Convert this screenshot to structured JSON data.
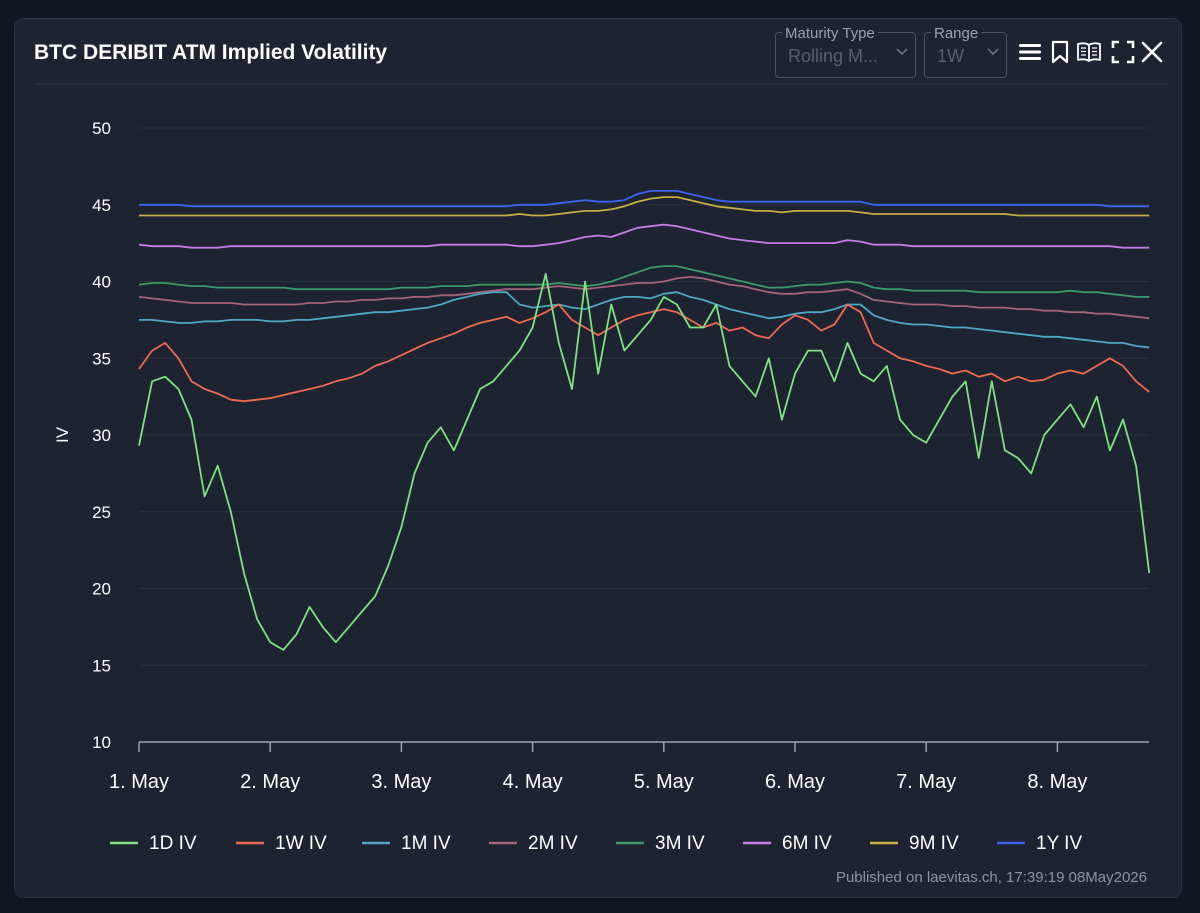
{
  "header": {
    "title": "BTC DERIBIT ATM Implied Volatility",
    "maturity_type": {
      "label": "Maturity Type",
      "value": "Rolling M..."
    },
    "range": {
      "label": "Range",
      "value": "1W"
    },
    "icons": [
      "menu-icon",
      "bookmark-icon",
      "book-icon",
      "fullscreen-icon",
      "close-icon"
    ]
  },
  "footer": {
    "published": "Published on laevitas.ch, 17:39:19 08May2026"
  },
  "colors": {
    "background": "#1d2330",
    "grid": "#293140",
    "axis_text": "#ffffff"
  },
  "chart_data": {
    "type": "line",
    "title": "BTC DERIBIT ATM Implied Volatility",
    "xlabel": "",
    "ylabel": "IV",
    "ylim": [
      10,
      50
    ],
    "yticks": [
      10,
      15,
      20,
      25,
      30,
      35,
      40,
      45,
      50
    ],
    "xlim_days": [
      0,
      7.7
    ],
    "xticks": [
      {
        "day": 0,
        "label": "1. May"
      },
      {
        "day": 1,
        "label": "2. May"
      },
      {
        "day": 2,
        "label": "3. May"
      },
      {
        "day": 3,
        "label": "4. May"
      },
      {
        "day": 4,
        "label": "5. May"
      },
      {
        "day": 5,
        "label": "6. May"
      },
      {
        "day": 6,
        "label": "7. May"
      },
      {
        "day": 7,
        "label": "8. May"
      }
    ],
    "grid": true,
    "legend_position": "bottom",
    "x": [
      0,
      0.1,
      0.2,
      0.3,
      0.4,
      0.5,
      0.6,
      0.7,
      0.8,
      0.9,
      1.0,
      1.1,
      1.2,
      1.3,
      1.4,
      1.5,
      1.6,
      1.7,
      1.8,
      1.9,
      2.0,
      2.1,
      2.2,
      2.3,
      2.4,
      2.5,
      2.6,
      2.7,
      2.8,
      2.9,
      3.0,
      3.1,
      3.2,
      3.3,
      3.4,
      3.5,
      3.6,
      3.7,
      3.8,
      3.9,
      4.0,
      4.1,
      4.2,
      4.3,
      4.4,
      4.5,
      4.6,
      4.7,
      4.8,
      4.9,
      5.0,
      5.1,
      5.2,
      5.3,
      5.4,
      5.5,
      5.6,
      5.7,
      5.8,
      5.9,
      6.0,
      6.1,
      6.2,
      6.3,
      6.4,
      6.5,
      6.6,
      6.7,
      6.8,
      6.9,
      7.0,
      7.1,
      7.2,
      7.3,
      7.4,
      7.5,
      7.6,
      7.7
    ],
    "series": [
      {
        "name": "1D IV",
        "color": "#7ee37e",
        "values": [
          29.3,
          33.5,
          33.8,
          33.0,
          31.0,
          26.0,
          28.0,
          25.0,
          21.0,
          18.0,
          16.5,
          16.0,
          17.0,
          18.8,
          17.5,
          16.5,
          17.5,
          18.5,
          19.5,
          21.5,
          24.0,
          27.5,
          29.5,
          30.5,
          29.0,
          31.0,
          33.0,
          33.5,
          34.5,
          35.5,
          37.0,
          40.5,
          36.0,
          33.0,
          40.0,
          34.0,
          38.5,
          35.5,
          36.5,
          37.5,
          39.0,
          38.5,
          37.0,
          37.0,
          38.5,
          34.5,
          33.5,
          32.5,
          35.0,
          31.0,
          34.0,
          35.5,
          35.5,
          33.5,
          36.0,
          34.0,
          33.5,
          34.5,
          31.0,
          30.0,
          29.5,
          31.0,
          32.5,
          33.5,
          28.5,
          33.5,
          29.0,
          28.5,
          27.5,
          30.0,
          31.0,
          32.0,
          30.5,
          32.5,
          29.0,
          31.0,
          28.0,
          21.0
        ]
      },
      {
        "name": "1W IV",
        "color": "#ee6a4f",
        "values": [
          34.3,
          35.5,
          36.0,
          35.0,
          33.5,
          33.0,
          32.7,
          32.3,
          32.2,
          32.3,
          32.4,
          32.6,
          32.8,
          33.0,
          33.2,
          33.5,
          33.7,
          34.0,
          34.5,
          34.8,
          35.2,
          35.6,
          36.0,
          36.3,
          36.6,
          37.0,
          37.3,
          37.5,
          37.7,
          37.3,
          37.6,
          38.0,
          38.5,
          37.5,
          37.0,
          36.5,
          37.0,
          37.5,
          37.8,
          38.0,
          38.2,
          38.0,
          37.5,
          37.0,
          37.3,
          36.8,
          37.0,
          36.5,
          36.3,
          37.2,
          37.8,
          37.5,
          36.8,
          37.2,
          38.5,
          38.0,
          36.0,
          35.5,
          35.0,
          34.8,
          34.5,
          34.3,
          34.0,
          34.2,
          33.8,
          34.0,
          33.5,
          33.8,
          33.5,
          33.6,
          34.0,
          34.2,
          34.0,
          34.5,
          35.0,
          34.5,
          33.5,
          32.8
        ]
      },
      {
        "name": "1M IV",
        "color": "#4fa7c8",
        "values": [
          37.5,
          37.5,
          37.4,
          37.3,
          37.3,
          37.4,
          37.4,
          37.5,
          37.5,
          37.5,
          37.4,
          37.4,
          37.5,
          37.5,
          37.6,
          37.7,
          37.8,
          37.9,
          38.0,
          38.0,
          38.1,
          38.2,
          38.3,
          38.5,
          38.8,
          39.0,
          39.2,
          39.3,
          39.3,
          38.5,
          38.3,
          38.4,
          38.5,
          38.3,
          38.2,
          38.5,
          38.8,
          39.0,
          39.0,
          38.9,
          39.2,
          39.3,
          39.0,
          38.8,
          38.5,
          38.2,
          38.0,
          37.8,
          37.6,
          37.7,
          37.9,
          38.0,
          38.0,
          38.2,
          38.5,
          38.5,
          37.8,
          37.5,
          37.3,
          37.2,
          37.2,
          37.1,
          37.0,
          37.0,
          36.9,
          36.8,
          36.7,
          36.6,
          36.5,
          36.4,
          36.4,
          36.3,
          36.2,
          36.1,
          36.0,
          36.0,
          35.8,
          35.7
        ]
      },
      {
        "name": "2M IV",
        "color": "#a5647a",
        "values": [
          39.0,
          38.9,
          38.8,
          38.7,
          38.6,
          38.6,
          38.6,
          38.6,
          38.5,
          38.5,
          38.5,
          38.5,
          38.5,
          38.6,
          38.6,
          38.7,
          38.7,
          38.8,
          38.8,
          38.9,
          38.9,
          39.0,
          39.0,
          39.1,
          39.1,
          39.2,
          39.3,
          39.4,
          39.5,
          39.5,
          39.5,
          39.6,
          39.7,
          39.6,
          39.5,
          39.6,
          39.7,
          39.8,
          39.9,
          39.9,
          40.0,
          40.2,
          40.3,
          40.2,
          40.0,
          39.8,
          39.7,
          39.5,
          39.3,
          39.2,
          39.2,
          39.3,
          39.3,
          39.4,
          39.5,
          39.2,
          38.8,
          38.7,
          38.6,
          38.5,
          38.5,
          38.5,
          38.4,
          38.4,
          38.3,
          38.3,
          38.3,
          38.2,
          38.2,
          38.1,
          38.1,
          38.0,
          38.0,
          37.9,
          37.9,
          37.8,
          37.7,
          37.6
        ]
      },
      {
        "name": "3M IV",
        "color": "#3f9a6a",
        "values": [
          39.8,
          39.9,
          39.9,
          39.8,
          39.7,
          39.7,
          39.6,
          39.6,
          39.6,
          39.6,
          39.6,
          39.6,
          39.5,
          39.5,
          39.5,
          39.5,
          39.5,
          39.5,
          39.5,
          39.5,
          39.6,
          39.6,
          39.6,
          39.7,
          39.7,
          39.7,
          39.8,
          39.8,
          39.8,
          39.8,
          39.8,
          39.8,
          39.9,
          39.8,
          39.7,
          39.8,
          40.0,
          40.3,
          40.6,
          40.9,
          41.0,
          41.0,
          40.8,
          40.6,
          40.4,
          40.2,
          40.0,
          39.8,
          39.6,
          39.6,
          39.7,
          39.8,
          39.8,
          39.9,
          40.0,
          39.9,
          39.6,
          39.5,
          39.5,
          39.4,
          39.4,
          39.4,
          39.4,
          39.4,
          39.3,
          39.3,
          39.3,
          39.3,
          39.3,
          39.3,
          39.3,
          39.4,
          39.3,
          39.3,
          39.2,
          39.1,
          39.0,
          39.0
        ]
      },
      {
        "name": "6M IV",
        "color": "#c57be6",
        "values": [
          42.4,
          42.3,
          42.3,
          42.3,
          42.2,
          42.2,
          42.2,
          42.3,
          42.3,
          42.3,
          42.3,
          42.3,
          42.3,
          42.3,
          42.3,
          42.3,
          42.3,
          42.3,
          42.3,
          42.3,
          42.3,
          42.3,
          42.3,
          42.4,
          42.4,
          42.4,
          42.4,
          42.4,
          42.4,
          42.3,
          42.3,
          42.4,
          42.5,
          42.7,
          42.9,
          43.0,
          42.9,
          43.2,
          43.5,
          43.6,
          43.7,
          43.6,
          43.4,
          43.2,
          43.0,
          42.8,
          42.7,
          42.6,
          42.5,
          42.5,
          42.5,
          42.5,
          42.5,
          42.5,
          42.7,
          42.6,
          42.4,
          42.4,
          42.4,
          42.3,
          42.3,
          42.3,
          42.3,
          42.3,
          42.3,
          42.3,
          42.3,
          42.3,
          42.3,
          42.3,
          42.3,
          42.3,
          42.3,
          42.3,
          42.3,
          42.2,
          42.2,
          42.2
        ]
      },
      {
        "name": "9M IV",
        "color": "#c9ad45",
        "values": [
          44.3,
          44.3,
          44.3,
          44.3,
          44.3,
          44.3,
          44.3,
          44.3,
          44.3,
          44.3,
          44.3,
          44.3,
          44.3,
          44.3,
          44.3,
          44.3,
          44.3,
          44.3,
          44.3,
          44.3,
          44.3,
          44.3,
          44.3,
          44.3,
          44.3,
          44.3,
          44.3,
          44.3,
          44.3,
          44.4,
          44.3,
          44.3,
          44.4,
          44.5,
          44.6,
          44.6,
          44.7,
          44.9,
          45.2,
          45.4,
          45.5,
          45.5,
          45.3,
          45.1,
          44.9,
          44.8,
          44.7,
          44.6,
          44.6,
          44.5,
          44.6,
          44.6,
          44.6,
          44.6,
          44.6,
          44.5,
          44.4,
          44.4,
          44.4,
          44.4,
          44.4,
          44.4,
          44.4,
          44.4,
          44.4,
          44.4,
          44.4,
          44.3,
          44.3,
          44.3,
          44.3,
          44.3,
          44.3,
          44.3,
          44.3,
          44.3,
          44.3,
          44.3
        ]
      },
      {
        "name": "1Y IV",
        "color": "#3b64f0",
        "values": [
          45.0,
          45.0,
          45.0,
          45.0,
          44.9,
          44.9,
          44.9,
          44.9,
          44.9,
          44.9,
          44.9,
          44.9,
          44.9,
          44.9,
          44.9,
          44.9,
          44.9,
          44.9,
          44.9,
          44.9,
          44.9,
          44.9,
          44.9,
          44.9,
          44.9,
          44.9,
          44.9,
          44.9,
          44.9,
          45.0,
          45.0,
          45.0,
          45.1,
          45.2,
          45.3,
          45.2,
          45.2,
          45.3,
          45.7,
          45.9,
          45.9,
          45.9,
          45.7,
          45.5,
          45.3,
          45.2,
          45.2,
          45.2,
          45.2,
          45.2,
          45.2,
          45.2,
          45.2,
          45.2,
          45.2,
          45.2,
          45.0,
          45.0,
          45.0,
          45.0,
          45.0,
          45.0,
          45.0,
          45.0,
          45.0,
          45.0,
          45.0,
          45.0,
          45.0,
          45.0,
          45.0,
          45.0,
          45.0,
          45.0,
          44.9,
          44.9,
          44.9,
          44.9
        ]
      }
    ]
  }
}
